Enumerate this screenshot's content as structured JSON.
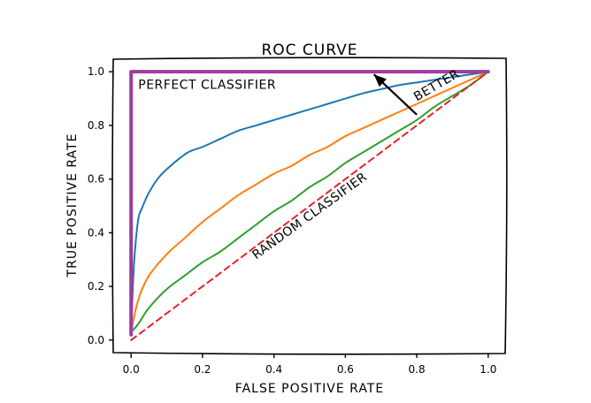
{
  "chart_data": {
    "type": "line",
    "title": "ROC CURVE",
    "xlabel": "FALSE POSITIVE RATE",
    "ylabel": "TRUE POSITIVE RATE",
    "xlim": [
      -0.05,
      1.05
    ],
    "ylim": [
      -0.05,
      1.05
    ],
    "xticks": [
      "0.0",
      "0.2",
      "0.4",
      "0.6",
      "0.8",
      "1.0"
    ],
    "yticks": [
      "0.0",
      "0.2",
      "0.4",
      "0.6",
      "0.8",
      "1.0"
    ],
    "grid": false,
    "series": [
      {
        "color": "#1f77b4",
        "style": "solid",
        "x": [
          0.0,
          0.005,
          0.01,
          0.02,
          0.03,
          0.05,
          0.08,
          0.12,
          0.16,
          0.2,
          0.25,
          0.3,
          0.35,
          0.4,
          0.45,
          0.5,
          0.55,
          0.6,
          0.65,
          0.7,
          0.75,
          0.8,
          0.85,
          0.9,
          0.95,
          1.0
        ],
        "y": [
          0.03,
          0.2,
          0.32,
          0.45,
          0.49,
          0.55,
          0.61,
          0.66,
          0.7,
          0.72,
          0.75,
          0.78,
          0.8,
          0.82,
          0.84,
          0.86,
          0.88,
          0.9,
          0.92,
          0.935,
          0.95,
          0.96,
          0.97,
          0.98,
          0.99,
          1.0
        ]
      },
      {
        "color": "#ff7f0e",
        "style": "solid",
        "x": [
          0.0,
          0.02,
          0.05,
          0.1,
          0.15,
          0.2,
          0.25,
          0.3,
          0.35,
          0.4,
          0.45,
          0.5,
          0.55,
          0.6,
          0.65,
          0.7,
          0.75,
          0.8,
          0.85,
          0.9,
          0.95,
          1.0
        ],
        "y": [
          0.03,
          0.15,
          0.24,
          0.32,
          0.38,
          0.44,
          0.49,
          0.54,
          0.58,
          0.62,
          0.65,
          0.69,
          0.72,
          0.76,
          0.79,
          0.82,
          0.85,
          0.88,
          0.91,
          0.94,
          0.97,
          1.0
        ]
      },
      {
        "color": "#2ca02c",
        "style": "solid",
        "x": [
          0.0,
          0.02,
          0.05,
          0.1,
          0.15,
          0.2,
          0.25,
          0.3,
          0.35,
          0.4,
          0.45,
          0.5,
          0.55,
          0.6,
          0.65,
          0.7,
          0.75,
          0.8,
          0.85,
          0.9,
          0.95,
          1.0
        ],
        "y": [
          0.03,
          0.06,
          0.12,
          0.19,
          0.24,
          0.29,
          0.33,
          0.38,
          0.43,
          0.48,
          0.52,
          0.57,
          0.61,
          0.66,
          0.7,
          0.74,
          0.78,
          0.82,
          0.87,
          0.91,
          0.95,
          1.0
        ]
      },
      {
        "name": "RANDOM CLASSIFIER",
        "color": "#e8202a",
        "style": "dashed",
        "x": [
          0.0,
          1.0
        ],
        "y": [
          0.0,
          1.0
        ]
      },
      {
        "name": "PERFECT CLASSIFIER",
        "color": "#9b3da0",
        "style": "solid-thick",
        "x": [
          0.0,
          0.0,
          1.0
        ],
        "y": [
          0.02,
          1.0,
          1.0
        ]
      }
    ],
    "annotations": [
      {
        "text": "PERFECT CLASSIFIER",
        "color": "#6b2fc0",
        "x": 0.02,
        "y": 0.97
      },
      {
        "text": "RANDOM CLASSIFIER",
        "color": "#e8202a",
        "x": 0.35,
        "y": 0.3
      },
      {
        "text": "BETTER",
        "color": "#000000",
        "x": 0.8,
        "y": 0.89
      }
    ],
    "arrow": {
      "from": [
        0.8,
        0.84
      ],
      "to": [
        0.68,
        0.99
      ]
    }
  }
}
